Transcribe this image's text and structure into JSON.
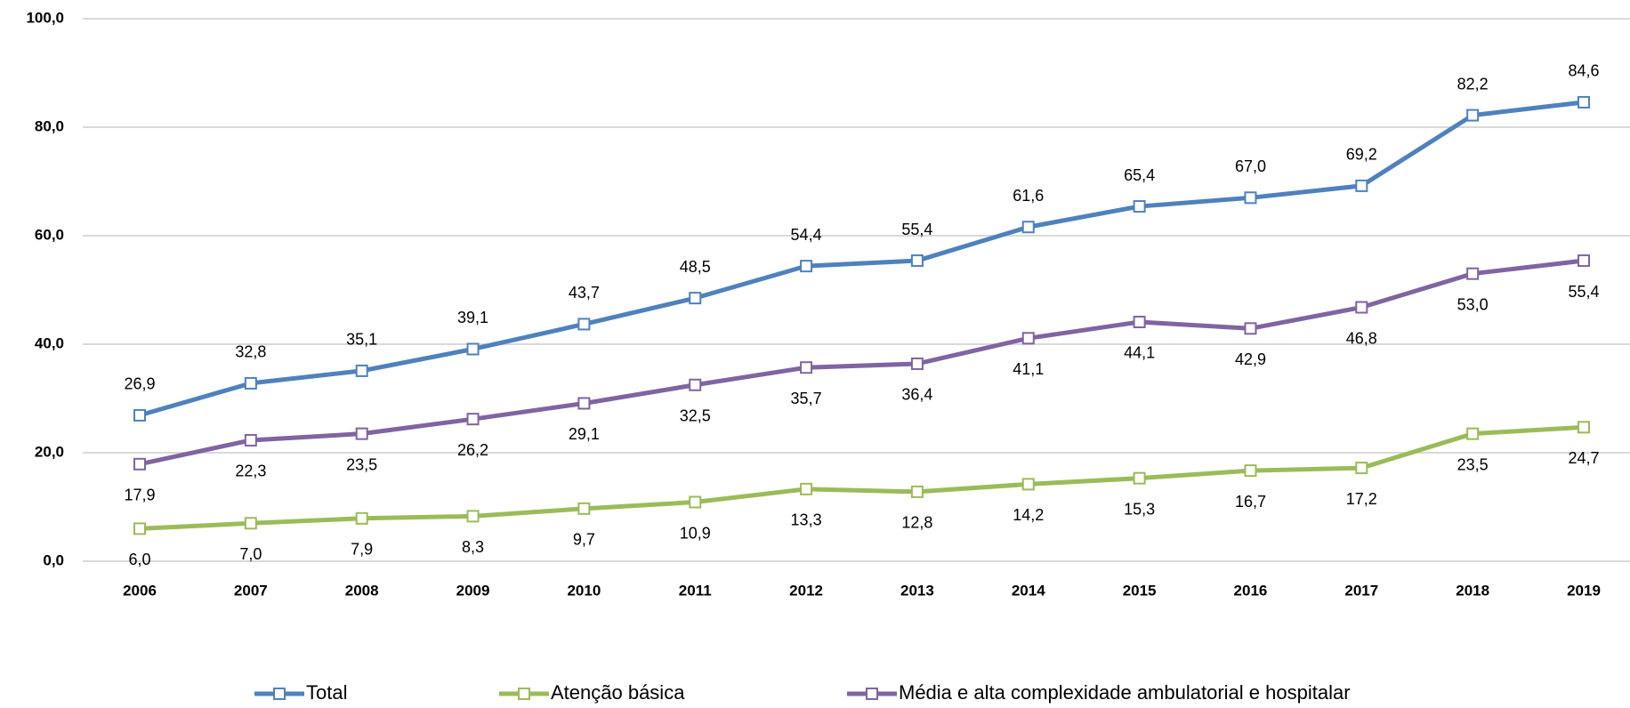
{
  "chart_data": {
    "type": "line",
    "categories": [
      "2006",
      "2007",
      "2008",
      "2009",
      "2010",
      "2011",
      "2012",
      "2013",
      "2014",
      "2015",
      "2016",
      "2017",
      "2018",
      "2019"
    ],
    "ylim": [
      0,
      100
    ],
    "yticks": [
      {
        "value": 0,
        "label": "0,0"
      },
      {
        "value": 20,
        "label": "20,0"
      },
      {
        "value": 40,
        "label": "40,0"
      },
      {
        "value": 60,
        "label": "60,0"
      },
      {
        "value": 80,
        "label": "80,0"
      },
      {
        "value": 100,
        "label": "100,0"
      }
    ],
    "grid": true,
    "legend": "bottom",
    "series": [
      {
        "name": "Total",
        "color": "#4f81bd",
        "label_position": "above",
        "values": [
          26.9,
          32.8,
          35.1,
          39.1,
          43.7,
          48.5,
          54.4,
          55.4,
          61.6,
          65.4,
          67.0,
          69.2,
          82.2,
          84.6
        ],
        "value_labels": [
          "26,9",
          "32,8",
          "35,1",
          "39,1",
          "43,7",
          "48,5",
          "54,4",
          "55,4",
          "61,6",
          "65,4",
          "67,0",
          "69,2",
          "82,2",
          "84,6"
        ]
      },
      {
        "name": "Atenção básica",
        "color": "#9bbb59",
        "label_position": "below",
        "values": [
          6.0,
          7.0,
          7.9,
          8.3,
          9.7,
          10.9,
          13.3,
          12.8,
          14.2,
          15.3,
          16.7,
          17.2,
          23.5,
          24.7
        ],
        "value_labels": [
          "6,0",
          "7,0",
          "7,9",
          "8,3",
          "9,7",
          "10,9",
          "13,3",
          "12,8",
          "14,2",
          "15,3",
          "16,7",
          "17,2",
          "23,5",
          "24,7"
        ]
      },
      {
        "name": "Média e alta complexidade ambulatorial e hospitalar",
        "color": "#8064a2",
        "label_position": "below",
        "values": [
          17.9,
          22.3,
          23.5,
          26.2,
          29.1,
          32.5,
          35.7,
          36.4,
          41.1,
          44.1,
          42.9,
          46.8,
          53.0,
          55.4
        ],
        "value_labels": [
          "17,9",
          "22,3",
          "23,5",
          "26,2",
          "29,1",
          "32,5",
          "35,7",
          "36,4",
          "41,1",
          "44,1",
          "42,9",
          "46,8",
          "53,0",
          "55,4"
        ]
      }
    ]
  }
}
